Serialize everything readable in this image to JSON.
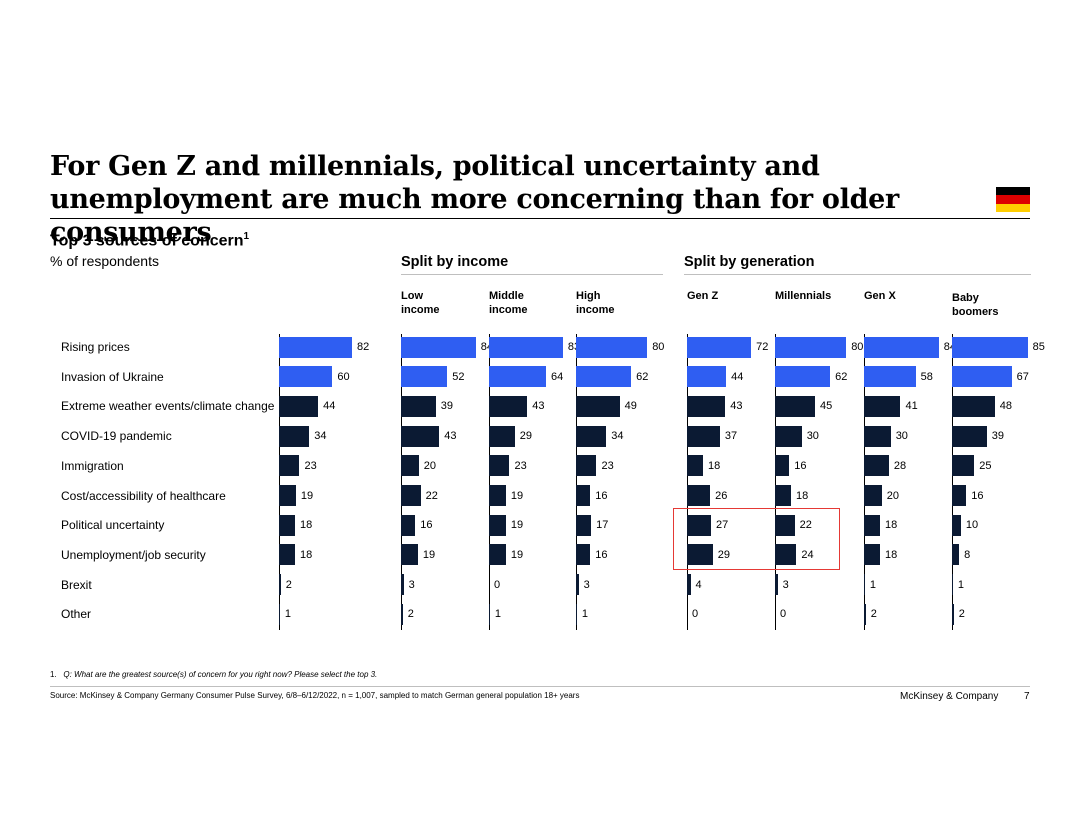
{
  "title": "For Gen Z and millennials, political uncertainty and unemployment are much more concerning than for older consumers",
  "subtitle": "Top 3 sources of concern",
  "subtitle_sup": "1",
  "unit_label": "% of respondents",
  "groups": {
    "income": "Split by income",
    "generation": "Split by generation"
  },
  "colors": {
    "light": "#2f5ef2",
    "dark": "#0b1a33",
    "highlight": "#e53935",
    "flag_black": "#000000",
    "flag_red": "#dd0000",
    "flag_gold": "#ffce00"
  },
  "footnote": {
    "number": "1.",
    "question": "Q: What are the greatest source(s) of concern for you right now? Please select the top 3."
  },
  "source": "Source: McKinsey & Company Germany Consumer Pulse Survey, 6/8–6/12/2022, n = 1,007, sampled to match German general population 18+ years",
  "brand": "McKinsey & Company",
  "page_number": "7",
  "chart_data": {
    "type": "bar",
    "orientation": "horizontal",
    "categories": [
      "Rising prices",
      "Invasion of Ukraine",
      "Extreme weather events/climate change",
      "COVID-19 pandemic",
      "Immigration",
      "Cost/accessibility of healthcare",
      "Political uncertainty",
      "Unemployment/job security",
      "Brexit",
      "Other"
    ],
    "highlight_color_rows": 2,
    "series": [
      {
        "name": "",
        "values": [
          82,
          60,
          44,
          34,
          23,
          19,
          18,
          18,
          2,
          1
        ]
      },
      {
        "name": "Low\nincome",
        "values": [
          84,
          52,
          39,
          43,
          20,
          22,
          16,
          19,
          3,
          2
        ]
      },
      {
        "name": "Middle\nincome",
        "values": [
          83,
          64,
          43,
          29,
          23,
          19,
          19,
          19,
          0,
          1
        ]
      },
      {
        "name": "High\nincome",
        "values": [
          80,
          62,
          49,
          34,
          23,
          16,
          17,
          16,
          3,
          1
        ]
      },
      {
        "name": "Gen Z",
        "values": [
          72,
          44,
          43,
          37,
          18,
          26,
          27,
          29,
          4,
          0
        ]
      },
      {
        "name": "Millennials",
        "values": [
          80,
          62,
          45,
          30,
          16,
          18,
          22,
          24,
          3,
          0
        ]
      },
      {
        "name": "Gen X",
        "values": [
          84,
          58,
          41,
          30,
          28,
          20,
          18,
          18,
          1,
          2
        ]
      },
      {
        "name": "Baby\nboomers",
        "values": [
          85,
          67,
          48,
          39,
          25,
          16,
          10,
          8,
          1,
          2
        ]
      }
    ]
  }
}
